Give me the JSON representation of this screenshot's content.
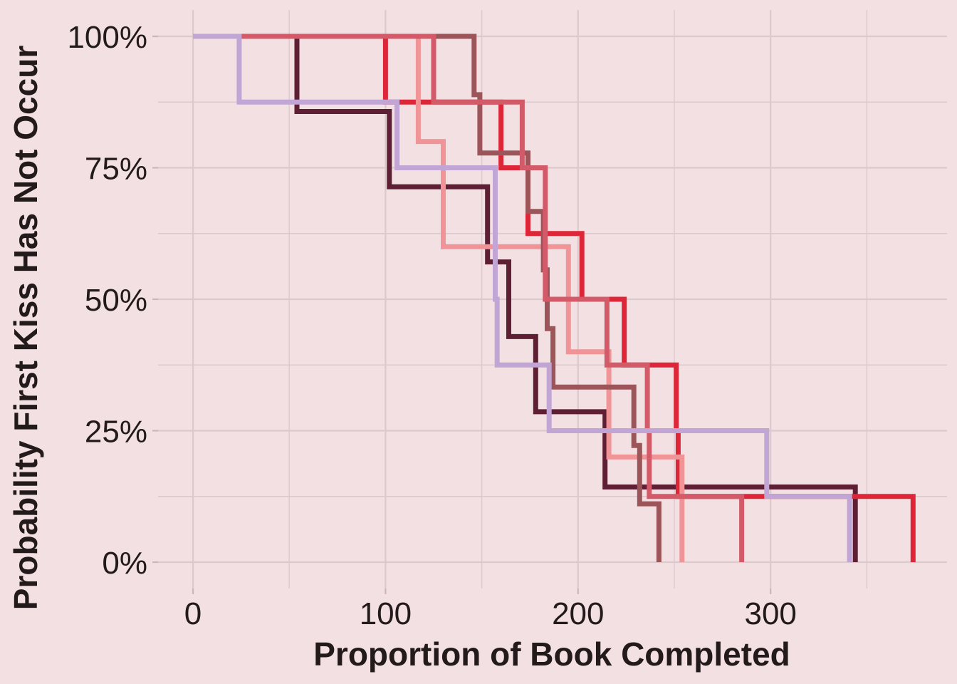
{
  "colors": {
    "background": "#f2e0e2",
    "grid": "#dcc9cd",
    "tick": "#cdb6ba",
    "text": "#231a1b"
  },
  "chart_data": {
    "type": "line",
    "step": true,
    "xlabel": "Proportion of Book Completed",
    "ylabel": "Probability First Kiss Has Not Occur",
    "xlim": [
      0,
      390
    ],
    "ylim": [
      0,
      1
    ],
    "x_ticks": [
      0,
      100,
      200,
      300
    ],
    "x_tick_labels": [
      "0",
      "100",
      "200",
      "300"
    ],
    "y_ticks": [
      0,
      0.25,
      0.5,
      0.75,
      1
    ],
    "y_tick_labels": [
      "0%",
      "25%",
      "50%",
      "75%",
      "100%"
    ],
    "grid": true,
    "legend": "none",
    "series": [
      {
        "color": "#5e1f35",
        "points": [
          [
            0,
            1.0
          ],
          [
            54,
            0.857
          ],
          [
            102,
            0.714
          ],
          [
            153,
            0.571
          ],
          [
            164,
            0.429
          ],
          [
            178,
            0.286
          ],
          [
            214,
            0.143
          ],
          [
            344,
            0.0
          ]
        ]
      },
      {
        "color": "#dd2637",
        "points": [
          [
            0,
            1.0
          ],
          [
            100,
            0.875
          ],
          [
            160,
            0.75
          ],
          [
            174,
            0.625
          ],
          [
            202,
            0.5
          ],
          [
            224,
            0.375
          ],
          [
            251,
            0.25
          ],
          [
            252,
            0.125
          ],
          [
            374,
            0.0
          ]
        ]
      },
      {
        "color": "#f09497",
        "points": [
          [
            0,
            1.0
          ],
          [
            117,
            0.8
          ],
          [
            130,
            0.6
          ],
          [
            195,
            0.4
          ],
          [
            216,
            0.2
          ],
          [
            254,
            0.0
          ]
        ]
      },
      {
        "color": "#9c5659",
        "points": [
          [
            0,
            1.0
          ],
          [
            146,
            0.889
          ],
          [
            149,
            0.778
          ],
          [
            174,
            0.667
          ],
          [
            182,
            0.556
          ],
          [
            184,
            0.444
          ],
          [
            187,
            0.333
          ],
          [
            229,
            0.222
          ],
          [
            232,
            0.111
          ],
          [
            242,
            0.0
          ]
        ]
      },
      {
        "color": "#d25a69",
        "points": [
          [
            0,
            1.0
          ],
          [
            125,
            0.875
          ],
          [
            171,
            0.75
          ],
          [
            183,
            0.5
          ],
          [
            215,
            0.375
          ],
          [
            236,
            0.25
          ],
          [
            237,
            0.125
          ],
          [
            285,
            0.0
          ]
        ]
      },
      {
        "color": "#c1a5d4",
        "points": [
          [
            0,
            1.0
          ],
          [
            24,
            0.875
          ],
          [
            106,
            0.75
          ],
          [
            157,
            0.5
          ],
          [
            158,
            0.375
          ],
          [
            185,
            0.25
          ],
          [
            298,
            0.125
          ],
          [
            341,
            0.0
          ]
        ]
      }
    ]
  }
}
